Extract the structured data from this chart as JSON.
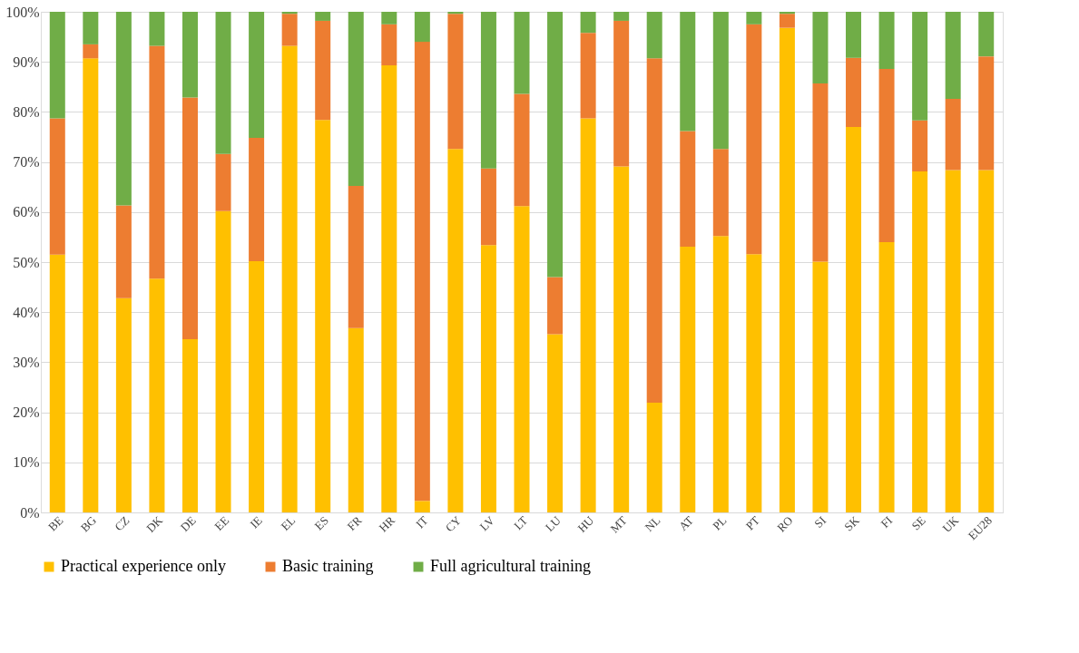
{
  "chart_data": {
    "type": "bar",
    "stacked": true,
    "categories": [
      "BE",
      "BG",
      "CZ",
      "DK",
      "DE",
      "EE",
      "IE",
      "EL",
      "ES",
      "FR",
      "HR",
      "IT",
      "CY",
      "LV",
      "LT",
      "LU",
      "HU",
      "MT",
      "NL",
      "AT",
      "PL",
      "PT",
      "RO",
      "SI",
      "SK",
      "FI",
      "SE",
      "UK",
      "EU28"
    ],
    "series": [
      {
        "name": "Practical experience only",
        "color": "#ffc000",
        "values": [
          51.5,
          90.7,
          42.8,
          46.7,
          34.6,
          60.2,
          50.2,
          93.2,
          78.4,
          36.8,
          89.3,
          2.3,
          72.6,
          53.4,
          61.2,
          35.6,
          78.7,
          69.1,
          21.9,
          53.1,
          55.2,
          51.6,
          96.8,
          50.1,
          77.0,
          54.0,
          68.1,
          68.4,
          68.4
        ]
      },
      {
        "name": "Basic training",
        "color": "#ed7d31",
        "values": [
          27.2,
          2.8,
          18.5,
          46.5,
          48.3,
          11.4,
          24.6,
          6.4,
          19.8,
          28.4,
          8.2,
          91.7,
          27.0,
          15.3,
          22.4,
          11.4,
          17.1,
          29.1,
          68.8,
          23.1,
          17.4,
          45.9,
          2.8,
          35.6,
          13.8,
          34.6,
          10.2,
          14.2,
          22.7
        ]
      },
      {
        "name": "Full agricultural training",
        "color": "#70ad47",
        "values": [
          21.3,
          6.5,
          38.7,
          6.8,
          17.1,
          28.4,
          25.2,
          0.4,
          1.8,
          34.8,
          2.5,
          6.0,
          0.4,
          31.3,
          16.4,
          53.0,
          4.2,
          1.8,
          9.3,
          23.8,
          27.4,
          2.5,
          0.4,
          14.3,
          9.2,
          11.4,
          21.7,
          17.4,
          8.9
        ]
      }
    ],
    "ylim": [
      0,
      100
    ],
    "yticks": [
      {
        "value": 0,
        "label": "0%"
      },
      {
        "value": 10,
        "label": "10%"
      },
      {
        "value": 20,
        "label": "20%"
      },
      {
        "value": 30,
        "label": "30%"
      },
      {
        "value": 40,
        "label": "40%"
      },
      {
        "value": 50,
        "label": "50%"
      },
      {
        "value": 60,
        "label": "60%"
      },
      {
        "value": 70,
        "label": "70%"
      },
      {
        "value": 80,
        "label": "80%"
      },
      {
        "value": 90,
        "label": "90%"
      },
      {
        "value": 100,
        "label": "100%"
      }
    ],
    "grid": "y",
    "legend": "bottom"
  }
}
